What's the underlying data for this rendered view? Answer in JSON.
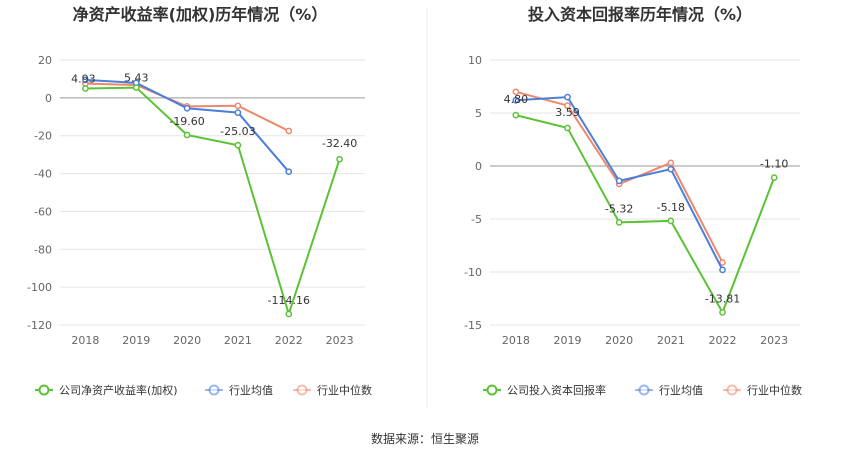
{
  "source": "数据来源：恒生聚源",
  "colors": {
    "company": "#5bc236",
    "average": "#4a7fdb",
    "median": "#f0876a",
    "grid": "#e6e6e6",
    "zero": "#999999"
  },
  "chart_data": [
    {
      "type": "line",
      "title": "净资产收益率(加权)历年情况（%）",
      "categories": [
        "2018",
        "2019",
        "2020",
        "2021",
        "2022",
        "2023"
      ],
      "ylim": [
        -120,
        20
      ],
      "yticks": [
        20,
        0,
        -20,
        -40,
        -60,
        -80,
        -100,
        -120
      ],
      "grid": true,
      "legend_position": "bottom",
      "series": [
        {
          "name": "公司净资产收益率(加权)",
          "color_key": "company",
          "values": [
            4.93,
            5.43,
            -19.6,
            -25.03,
            -114.16,
            -32.4
          ],
          "labels": [
            "4.93",
            "5.43",
            "-19.60",
            "-25.03",
            "-114.16",
            "-32.40"
          ]
        },
        {
          "name": "行业均值",
          "color_key": "average",
          "values": [
            9.5,
            7.9,
            -5.5,
            -7.8,
            -39.0,
            null
          ]
        },
        {
          "name": "行业中位数",
          "color_key": "median",
          "values": [
            7.5,
            6.8,
            -4.5,
            -4.2,
            -17.5,
            null
          ]
        }
      ]
    },
    {
      "type": "line",
      "title": "投入资本回报率历年情况（%）",
      "categories": [
        "2018",
        "2019",
        "2020",
        "2021",
        "2022",
        "2023"
      ],
      "ylim": [
        -15,
        10
      ],
      "yticks": [
        10,
        5,
        0,
        -5,
        -10,
        -15
      ],
      "grid": true,
      "legend_position": "bottom",
      "series": [
        {
          "name": "公司投入资本回报率",
          "color_key": "company",
          "values": [
            4.8,
            3.59,
            -5.32,
            -5.18,
            -13.81,
            -1.1
          ],
          "labels": [
            "4.80",
            "3.59",
            "-5.32",
            "-5.18",
            "-13.81",
            "-1.10"
          ]
        },
        {
          "name": "行业均值",
          "color_key": "average",
          "values": [
            6.2,
            6.5,
            -1.4,
            -0.3,
            -9.8,
            null
          ]
        },
        {
          "name": "行业中位数",
          "color_key": "median",
          "values": [
            7.0,
            5.7,
            -1.7,
            0.3,
            -9.1,
            null
          ]
        }
      ]
    }
  ]
}
